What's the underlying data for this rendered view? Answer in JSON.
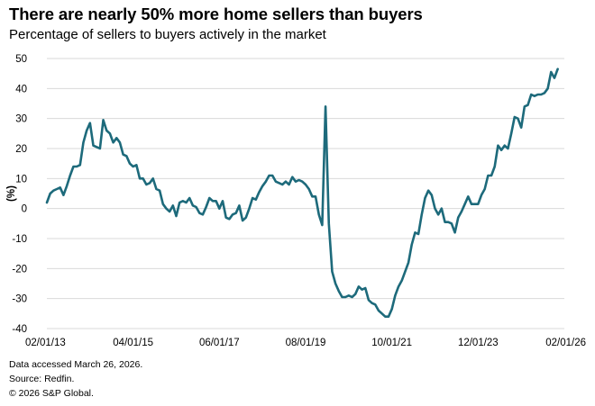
{
  "title": "There are nearly 50% more home sellers than buyers",
  "subtitle": "Percentage of sellers to buyers actively in the market",
  "notes": {
    "accessed": "Data accessed March 26, 2026.",
    "source": "Source: Redfin.",
    "copyright": "© 2026 S&P Global."
  },
  "colors": {
    "line": "#1d6a7b",
    "grid": "#d9d9d9"
  },
  "chart_data": {
    "type": "line",
    "title": "There are nearly 50% more home sellers than buyers",
    "subtitle": "Percentage of sellers to buyers actively in the market",
    "xlabel": "",
    "ylabel": "(%)",
    "ylim": [
      -40,
      50
    ],
    "yticks": [
      50,
      40,
      30,
      20,
      10,
      0,
      -10,
      -20,
      -30,
      -40
    ],
    "ytick_labels": [
      "50",
      "40",
      "30",
      "20",
      "10",
      "0",
      "-10",
      "-20",
      "-30",
      "-40"
    ],
    "x_range_months": [
      0,
      156
    ],
    "xticks": [
      {
        "month": 0,
        "label": "02/01/13"
      },
      {
        "month": 26,
        "label": "04/01/15"
      },
      {
        "month": 52,
        "label": "06/01/17"
      },
      {
        "month": 78,
        "label": "08/01/19"
      },
      {
        "month": 104,
        "label": "10/01/21"
      },
      {
        "month": 130,
        "label": "12/01/23"
      },
      {
        "month": 156,
        "label": "02/01/26"
      }
    ],
    "grid": true,
    "series": [
      {
        "name": "Percentage of sellers to buyers",
        "x_unit": "months since 02/01/13",
        "points": [
          [
            0,
            2
          ],
          [
            1,
            5
          ],
          [
            2,
            6
          ],
          [
            3,
            6.5
          ],
          [
            4,
            7
          ],
          [
            5,
            4.5
          ],
          [
            6,
            7.5
          ],
          [
            7,
            11
          ],
          [
            8,
            14
          ],
          [
            9,
            14
          ],
          [
            10,
            14.5
          ],
          [
            11,
            22
          ],
          [
            12,
            26
          ],
          [
            13,
            28.5
          ],
          [
            14,
            21
          ],
          [
            15,
            20.5
          ],
          [
            16,
            20
          ],
          [
            17,
            29.5
          ],
          [
            18,
            26
          ],
          [
            19,
            25
          ],
          [
            20,
            22
          ],
          [
            21,
            23.5
          ],
          [
            22,
            22
          ],
          [
            23,
            18
          ],
          [
            24,
            17.5
          ],
          [
            25,
            15
          ],
          [
            26,
            14
          ],
          [
            27,
            14.5
          ],
          [
            28,
            10
          ],
          [
            29,
            10
          ],
          [
            30,
            8
          ],
          [
            31,
            8.5
          ],
          [
            32,
            10
          ],
          [
            33,
            6.5
          ],
          [
            34,
            6
          ],
          [
            35,
            1.5
          ],
          [
            36,
            0
          ],
          [
            37,
            -1
          ],
          [
            38,
            1
          ],
          [
            39,
            -2.5
          ],
          [
            40,
            2
          ],
          [
            41,
            2.5
          ],
          [
            42,
            2
          ],
          [
            43,
            3.5
          ],
          [
            44,
            1
          ],
          [
            45,
            0.5
          ],
          [
            46,
            -1.5
          ],
          [
            47,
            -2
          ],
          [
            48,
            0.5
          ],
          [
            49,
            3.5
          ],
          [
            50,
            2.5
          ],
          [
            51,
            2.5
          ],
          [
            52,
            0
          ],
          [
            53,
            2.5
          ],
          [
            54,
            -3
          ],
          [
            55,
            -3.5
          ],
          [
            56,
            -2
          ],
          [
            57,
            -1.5
          ],
          [
            58,
            1
          ],
          [
            59,
            -4
          ],
          [
            60,
            -3
          ],
          [
            61,
            0
          ],
          [
            62,
            3.5
          ],
          [
            63,
            3
          ],
          [
            64,
            5.5
          ],
          [
            65,
            7.5
          ],
          [
            66,
            9
          ],
          [
            67,
            11
          ],
          [
            68,
            11
          ],
          [
            69,
            9
          ],
          [
            70,
            8.5
          ],
          [
            71,
            8
          ],
          [
            72,
            9
          ],
          [
            73,
            8
          ],
          [
            74,
            10.5
          ],
          [
            75,
            9
          ],
          [
            76,
            9.5
          ],
          [
            77,
            9
          ],
          [
            78,
            8
          ],
          [
            79,
            6.5
          ],
          [
            80,
            4
          ],
          [
            81,
            4
          ],
          [
            82,
            -2
          ],
          [
            83,
            -5.5
          ],
          [
            84,
            34
          ],
          [
            85,
            -5
          ],
          [
            86,
            -21
          ],
          [
            87,
            -25
          ],
          [
            88,
            -27.5
          ],
          [
            89,
            -29.5
          ],
          [
            90,
            -29.5
          ],
          [
            91,
            -29
          ],
          [
            92,
            -29.5
          ],
          [
            93,
            -28.5
          ],
          [
            94,
            -26
          ],
          [
            95,
            -27
          ],
          [
            96,
            -26.5
          ],
          [
            97,
            -30.5
          ],
          [
            98,
            -31.5
          ],
          [
            99,
            -32
          ],
          [
            100,
            -34
          ],
          [
            101,
            -35
          ],
          [
            102,
            -36
          ],
          [
            103,
            -36
          ],
          [
            104,
            -33.5
          ],
          [
            105,
            -29
          ],
          [
            106,
            -26
          ],
          [
            107,
            -24
          ],
          [
            108,
            -21
          ],
          [
            109,
            -18
          ],
          [
            110,
            -12
          ],
          [
            111,
            -8
          ],
          [
            112,
            -8.5
          ],
          [
            113,
            -2
          ],
          [
            114,
            3.5
          ],
          [
            115,
            6
          ],
          [
            116,
            4.5
          ],
          [
            117,
            0
          ],
          [
            118,
            -2
          ],
          [
            119,
            0
          ],
          [
            120,
            -4.5
          ],
          [
            121,
            -4.5
          ],
          [
            122,
            -5
          ],
          [
            123,
            -8
          ],
          [
            124,
            -3
          ],
          [
            125,
            -1
          ],
          [
            126,
            1.5
          ],
          [
            127,
            4
          ],
          [
            128,
            1.5
          ],
          [
            129,
            1.5
          ],
          [
            130,
            1.5
          ],
          [
            131,
            4.5
          ],
          [
            132,
            6.5
          ],
          [
            133,
            11
          ],
          [
            134,
            11
          ],
          [
            135,
            14
          ],
          [
            136,
            21
          ],
          [
            137,
            19.5
          ],
          [
            138,
            21
          ],
          [
            139,
            20
          ],
          [
            140,
            25
          ],
          [
            141,
            30.5
          ],
          [
            142,
            30
          ],
          [
            143,
            27
          ],
          [
            144,
            34
          ],
          [
            145,
            34.5
          ],
          [
            146,
            38
          ],
          [
            147,
            37.5
          ],
          [
            148,
            38
          ],
          [
            149,
            38
          ],
          [
            150,
            38.5
          ],
          [
            151,
            40
          ],
          [
            152,
            45.5
          ],
          [
            153,
            43.5
          ],
          [
            154,
            46.5
          ]
        ]
      }
    ]
  }
}
